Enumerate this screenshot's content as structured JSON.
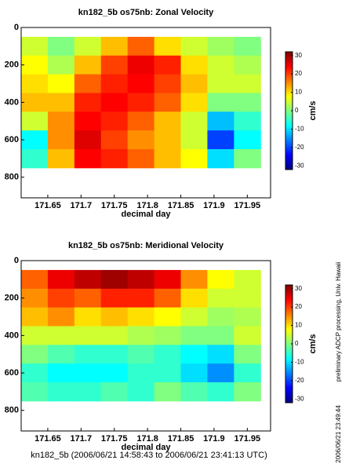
{
  "chart_data": [
    {
      "type": "heatmap",
      "title": "kn182_5b os75nb: Zonal Velocity",
      "xlabel": "decimal day",
      "x": [
        171.63,
        171.67,
        171.71,
        171.75,
        171.79,
        171.83,
        171.87,
        171.91,
        171.95
      ],
      "y": [
        100,
        200,
        300,
        400,
        500,
        600,
        700
      ],
      "z": [
        [
          5,
          0,
          5,
          12,
          18,
          10,
          5,
          2,
          0
        ],
        [
          8,
          3,
          12,
          20,
          25,
          22,
          10,
          5,
          3
        ],
        [
          10,
          8,
          18,
          22,
          24,
          20,
          12,
          5,
          5
        ],
        [
          12,
          12,
          22,
          24,
          22,
          18,
          10,
          0,
          0
        ],
        [
          5,
          15,
          24,
          22,
          18,
          12,
          5,
          -12,
          -5
        ],
        [
          -8,
          15,
          26,
          20,
          15,
          12,
          5,
          -20,
          -8
        ],
        [
          -5,
          12,
          24,
          22,
          18,
          12,
          8,
          -10,
          0
        ]
      ],
      "xlim": [
        171.61,
        171.985
      ],
      "ylim": [
        0,
        910
      ],
      "y_inverted": true,
      "xticks": [
        171.65,
        171.7,
        171.75,
        171.8,
        171.85,
        171.9,
        171.95
      ],
      "yticks": [
        0,
        200,
        400,
        600,
        800
      ],
      "colormap": "jet",
      "clim": [
        -32,
        32
      ],
      "colorbar_label": "cm/s",
      "colorbar_ticks": [
        30,
        20,
        10,
        0,
        -10,
        -20,
        -30
      ]
    },
    {
      "type": "heatmap",
      "title": "kn182_5b os75nb: Meridional Velocity",
      "xlabel": "decimal day",
      "x": [
        171.63,
        171.67,
        171.71,
        171.75,
        171.79,
        171.83,
        171.87,
        171.91,
        171.95
      ],
      "y": [
        100,
        200,
        300,
        400,
        500,
        600,
        700
      ],
      "z": [
        [
          18,
          25,
          28,
          30,
          28,
          25,
          15,
          8,
          5
        ],
        [
          15,
          20,
          18,
          22,
          22,
          18,
          10,
          5,
          5
        ],
        [
          12,
          15,
          10,
          12,
          10,
          8,
          5,
          2,
          3
        ],
        [
          5,
          5,
          5,
          5,
          3,
          2,
          0,
          0,
          5
        ],
        [
          0,
          -3,
          -5,
          -5,
          -3,
          -5,
          -8,
          -10,
          0
        ],
        [
          -5,
          -8,
          -8,
          -8,
          -5,
          -5,
          -10,
          -15,
          -5
        ],
        [
          -3,
          -5,
          -5,
          -3,
          -5,
          0,
          -3,
          -5,
          0
        ]
      ],
      "xlim": [
        171.61,
        171.985
      ],
      "ylim": [
        0,
        910
      ],
      "y_inverted": true,
      "xticks": [
        171.65,
        171.7,
        171.75,
        171.8,
        171.85,
        171.9,
        171.95
      ],
      "yticks": [
        0,
        200,
        400,
        600,
        800
      ],
      "colormap": "jet",
      "clim": [
        -32,
        32
      ],
      "colorbar_label": "cm/s",
      "colorbar_ticks": [
        30,
        20,
        10,
        0,
        -10,
        -20,
        -30
      ]
    }
  ],
  "footer": "kn182_5b (2006/06/21 14:58:43 to 2006/06/21 23:41:13 UTC)",
  "side_note": "preliminary ADCP processing,   Univ. Hawaii",
  "timestamp": "2006/06/21 23:49:44"
}
